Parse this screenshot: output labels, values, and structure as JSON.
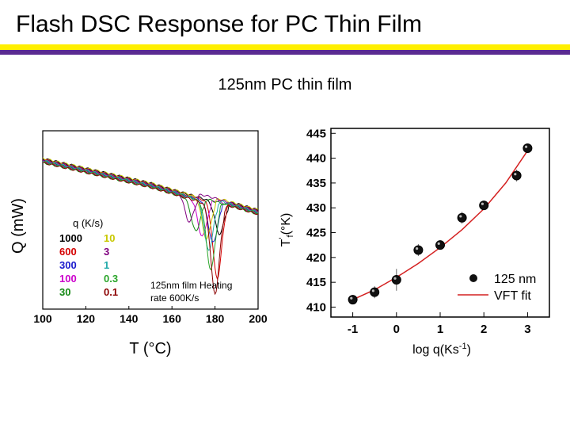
{
  "slide": {
    "title": "Flash DSC Response for PC Thin Film",
    "subtitle": "125nm PC thin film",
    "accent_yellow": "#ffef00",
    "accent_purple": "#5a2b91"
  },
  "chart_data": [
    {
      "type": "line",
      "xlabel": "T (°C)",
      "ylabel": "Q (mW)",
      "xlim": [
        100,
        200
      ],
      "xticks": [
        "100",
        "120",
        "140",
        "160",
        "180",
        "200"
      ],
      "legend_title": "q (K/s)",
      "annotation": [
        "125nm film Heating",
        "rate 600K/s"
      ],
      "series": [
        {
          "name": "1000",
          "color": "#000000",
          "dip_T": 182,
          "dip_depth": 0.35
        },
        {
          "name": "600",
          "color": "#d40000",
          "dip_T": 181,
          "dip_depth": 0.85
        },
        {
          "name": "300",
          "color": "#1a1acc",
          "dip_T": 179,
          "dip_depth": 0.45
        },
        {
          "name": "100",
          "color": "#cc00cc",
          "dip_T": 174,
          "dip_depth": 0.4
        },
        {
          "name": "30",
          "color": "#128812",
          "dip_T": 171,
          "dip_depth": 0.35
        },
        {
          "name": "10",
          "color": "#c8c800",
          "dip_T": 176,
          "dip_depth": 0.45
        },
        {
          "name": "3",
          "color": "#800080",
          "dip_T": 168,
          "dip_depth": 0.3
        },
        {
          "name": "1",
          "color": "#22aaaa",
          "dip_T": 177,
          "dip_depth": 0.55
        },
        {
          "name": "0.3",
          "color": "#2aa52a",
          "dip_T": 178,
          "dip_depth": 0.75
        },
        {
          "name": "0.1",
          "color": "#8b0000",
          "dip_T": 180,
          "dip_depth": 1.0
        }
      ]
    },
    {
      "type": "scatter",
      "xlabel": "log q(Ks",
      "xlabel_sup": "-1",
      "xlabel_end": ")",
      "ylabel_base": "T",
      "ylabel_sup": "'",
      "ylabel_sub": "f",
      "ylabel_unit": "(°K)",
      "xlim": [
        -1.5,
        3.5
      ],
      "ylim": [
        408,
        446
      ],
      "xticks": [
        -1,
        0,
        1,
        2,
        3
      ],
      "yticks": [
        410,
        415,
        420,
        425,
        430,
        435,
        440,
        445
      ],
      "series": [
        {
          "name": "125 nm",
          "x": [
            -1.0,
            -0.5,
            0.0,
            0.5,
            1.0,
            1.5,
            2.0,
            2.75,
            3.0
          ],
          "y": [
            411.5,
            413.0,
            415.5,
            421.5,
            422.5,
            428.0,
            430.5,
            436.5,
            442.0
          ],
          "yerr": [
            0.8,
            1.2,
            2.2,
            1.2,
            0.8,
            1.2,
            0.8,
            1.2,
            0.8
          ]
        },
        {
          "name": "VFT fit",
          "color": "#d42020",
          "x": [
            -1.0,
            -0.5,
            0.0,
            0.5,
            1.0,
            1.5,
            2.0,
            2.5,
            3.0
          ],
          "y": [
            411.5,
            413.5,
            416.0,
            418.8,
            422.0,
            425.6,
            429.8,
            435.0,
            441.5
          ]
        }
      ],
      "legend": [
        "125 nm",
        "VFT fit"
      ]
    }
  ]
}
